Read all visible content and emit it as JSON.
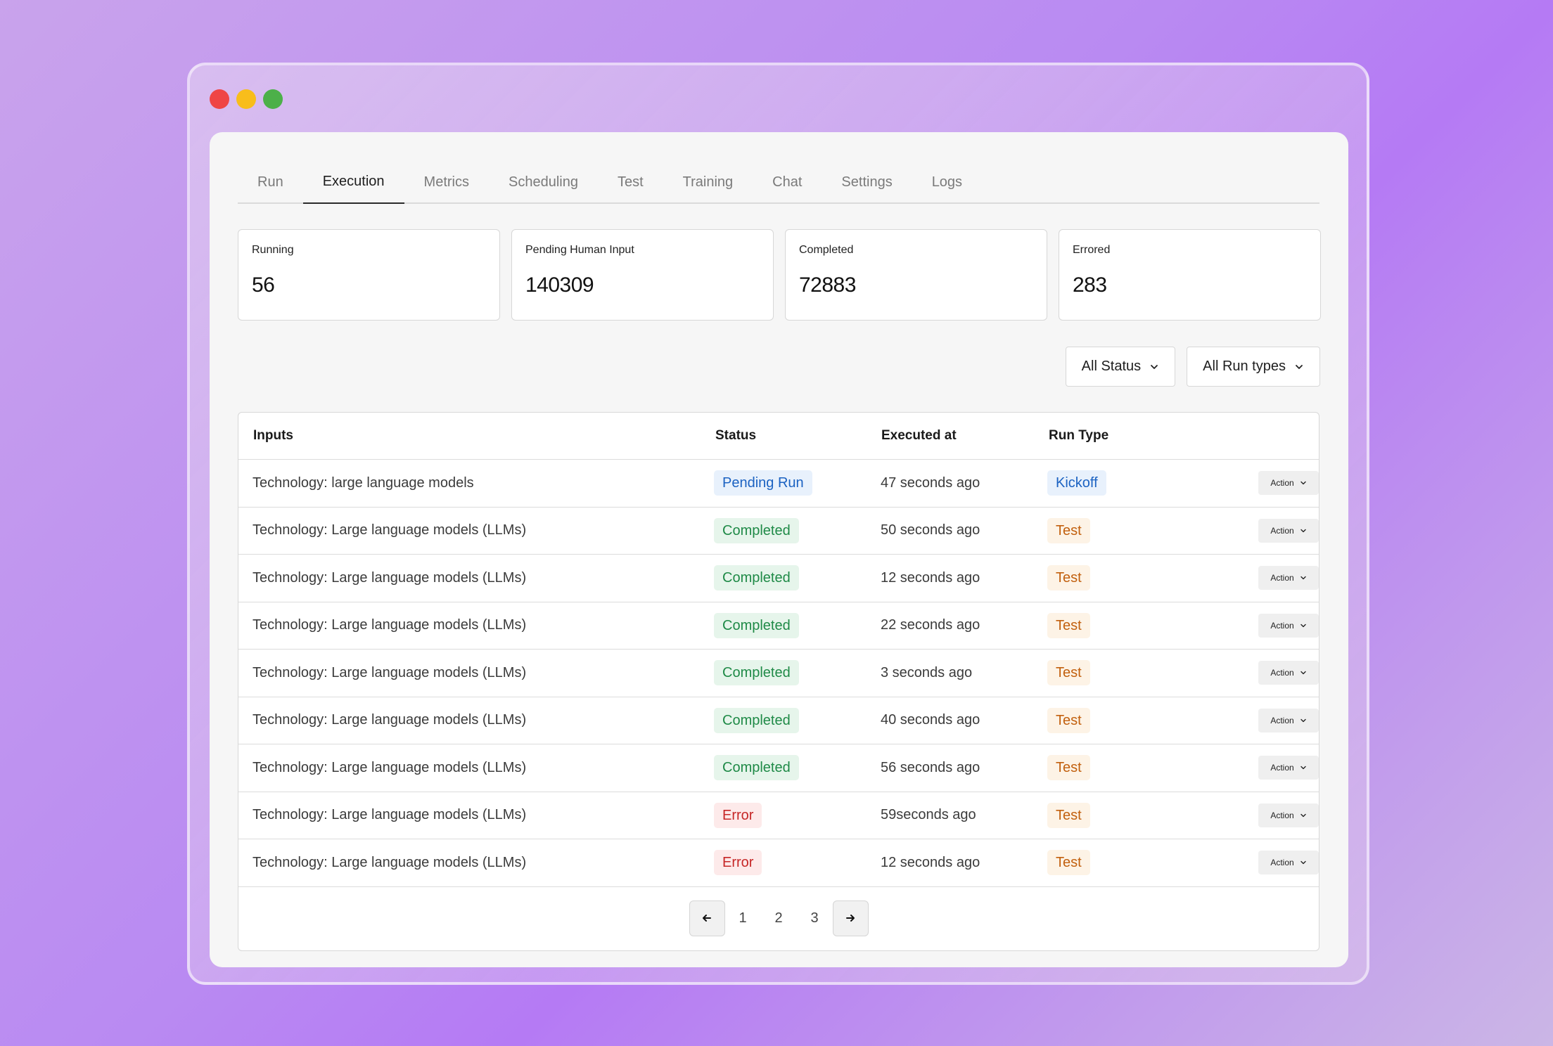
{
  "tabs": [
    "Run",
    "Execution",
    "Metrics",
    "Scheduling",
    "Test",
    "Training",
    "Chat",
    "Settings",
    "Logs"
  ],
  "active_tab": "Execution",
  "stats": [
    {
      "label": "Running",
      "value": "56"
    },
    {
      "label": "Pending Human Input",
      "value": "140309"
    },
    {
      "label": "Completed",
      "value": "72883"
    },
    {
      "label": "Errored",
      "value": "283"
    }
  ],
  "filters": {
    "status": "All Status",
    "run_type": "All Run types"
  },
  "table": {
    "headers": {
      "inputs": "Inputs",
      "status": "Status",
      "executed": "Executed at",
      "run_type": "Run Type"
    },
    "action_label": "Action",
    "rows": [
      {
        "input": "Technology: large language models",
        "status": "Pending Run",
        "status_kind": "pending",
        "executed": "47 seconds ago",
        "run_type": "Kickoff",
        "run_kind": "kickoff"
      },
      {
        "input": "Technology: Large language models (LLMs)",
        "status": "Completed",
        "status_kind": "completed",
        "executed": "50 seconds ago",
        "run_type": "Test",
        "run_kind": "test"
      },
      {
        "input": "Technology: Large language models (LLMs)",
        "status": "Completed",
        "status_kind": "completed",
        "executed": "12 seconds ago",
        "run_type": "Test",
        "run_kind": "test"
      },
      {
        "input": "Technology: Large language models (LLMs)",
        "status": "Completed",
        "status_kind": "completed",
        "executed": "22 seconds ago",
        "run_type": "Test",
        "run_kind": "test"
      },
      {
        "input": "Technology: Large language models (LLMs)",
        "status": "Completed",
        "status_kind": "completed",
        "executed": "3 seconds ago",
        "run_type": "Test",
        "run_kind": "test"
      },
      {
        "input": "Technology: Large language models (LLMs)",
        "status": "Completed",
        "status_kind": "completed",
        "executed": "40 seconds ago",
        "run_type": "Test",
        "run_kind": "test"
      },
      {
        "input": "Technology: Large language models (LLMs)",
        "status": "Completed",
        "status_kind": "completed",
        "executed": "56 seconds ago",
        "run_type": "Test",
        "run_kind": "test"
      },
      {
        "input": "Technology: Large language models (LLMs)",
        "status": "Error",
        "status_kind": "error",
        "executed": "59seconds ago",
        "run_type": "Test",
        "run_kind": "test"
      },
      {
        "input": "Technology: Large language models (LLMs)",
        "status": "Error",
        "status_kind": "error",
        "executed": "12 seconds ago",
        "run_type": "Test",
        "run_kind": "test"
      }
    ]
  },
  "pagination": {
    "pages": [
      "1",
      "2",
      "3"
    ],
    "prev_icon": "arrow-left-icon",
    "next_icon": "arrow-right-icon"
  },
  "colors": {
    "pending": "#1b62c2",
    "completed": "#1f8a47",
    "error": "#c62727",
    "test": "#c2600e"
  }
}
